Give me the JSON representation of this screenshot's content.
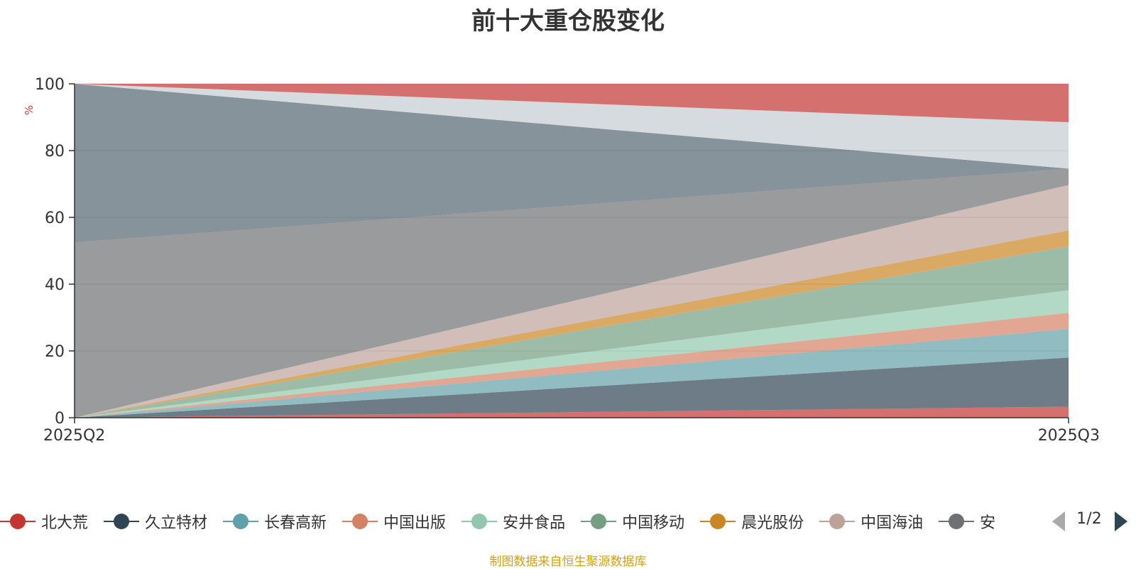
{
  "title": "前十大重仓股变化",
  "unit_label": "%",
  "source_note": "制图数据来自恒生聚源数据库",
  "legend_pager": "1/2",
  "chart_data": {
    "type": "area",
    "stacked": true,
    "title": "前十大重仓股变化",
    "ylabel": "%",
    "xlabel": "",
    "ylim": [
      0,
      100
    ],
    "yticks": [
      0,
      20,
      40,
      60,
      80,
      100
    ],
    "grid": true,
    "legend_position": "bottom",
    "x": [
      "2025Q2",
      "2025Q3"
    ],
    "series": [
      {
        "name": "北大荒",
        "color": "#c23531",
        "values": [
          0.0,
          3.3
        ]
      },
      {
        "name": "久立特材",
        "color": "#2f4554",
        "values": [
          0.0,
          14.7
        ]
      },
      {
        "name": "长春高新",
        "color": "#61a0a8",
        "values": [
          0.0,
          8.6
        ]
      },
      {
        "name": "中国出版",
        "color": "#d48265",
        "values": [
          0.0,
          4.8
        ]
      },
      {
        "name": "安井食品",
        "color": "#91c7ae",
        "values": [
          0.0,
          6.8
        ]
      },
      {
        "name": "中国移动",
        "color": "#749f83",
        "values": [
          0.0,
          13.1
        ]
      },
      {
        "name": "晨光股份",
        "color": "#ca8622",
        "values": [
          0.0,
          4.8
        ]
      },
      {
        "name": "中国海油",
        "color": "#bda29a",
        "values": [
          0.0,
          13.6
        ]
      },
      {
        "name": "安",
        "color": "#6e7074",
        "values": [
          52.5,
          4.9
        ]
      },
      {
        "name": "",
        "color": "#546570",
        "values": [
          47.5,
          0.0
        ]
      },
      {
        "name": "",
        "color": "#c4ccd3",
        "values": [
          0.0,
          13.9
        ]
      },
      {
        "name": "",
        "color": "#c23531",
        "values": [
          0.0,
          11.5
        ]
      }
    ]
  }
}
